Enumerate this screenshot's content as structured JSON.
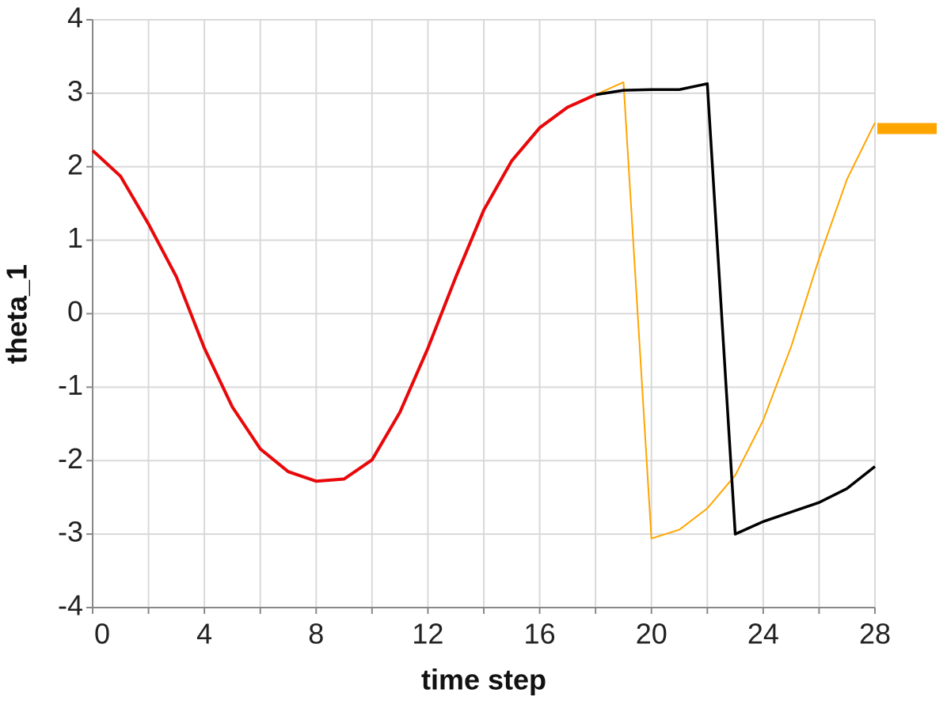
{
  "chart_data": {
    "type": "line",
    "x_label": "time step",
    "y_label": "theta_1",
    "xlim": [
      0,
      28
    ],
    "xticks": [
      0,
      4,
      8,
      12,
      16,
      20,
      24,
      28
    ],
    "x_minor_ticks": [
      2,
      6,
      10,
      14,
      18,
      22,
      26
    ],
    "ylim": [
      -4,
      4
    ],
    "yticks": [
      -4,
      -3,
      -2,
      -1,
      0,
      1,
      2,
      3,
      4
    ],
    "grid": true,
    "series": [
      {
        "color": "#e8080a",
        "width": 4,
        "x": [
          0,
          1,
          2,
          3,
          4,
          5,
          6,
          7,
          8,
          9,
          10,
          11,
          12,
          13,
          14,
          15,
          16,
          17,
          18
        ],
        "values": [
          2.22,
          1.87,
          1.22,
          0.5,
          -0.47,
          -1.27,
          -1.84,
          -2.15,
          -2.28,
          -2.25,
          -1.99,
          -1.34,
          -0.47,
          0.5,
          1.41,
          2.08,
          2.53,
          2.81,
          2.98
        ]
      },
      {
        "color": "#ffa500",
        "width": 2,
        "x": [
          18,
          19,
          20,
          21,
          22,
          23,
          24,
          25,
          26,
          27,
          28
        ],
        "values": [
          2.98,
          3.15,
          -3.06,
          -2.94,
          -2.65,
          -2.2,
          -1.45,
          -0.45,
          0.75,
          1.83,
          2.6
        ]
      },
      {
        "color": "#000000",
        "width": 3.5,
        "x": [
          18,
          19,
          20,
          21,
          22,
          23,
          24,
          25,
          26,
          27,
          28
        ],
        "values": [
          2.98,
          3.04,
          3.05,
          3.05,
          3.13,
          -3.0,
          -2.83,
          -2.7,
          -2.57,
          -2.38,
          -2.08
        ]
      }
    ],
    "target": {
      "value": 2.52,
      "color": "#ffa500"
    }
  }
}
